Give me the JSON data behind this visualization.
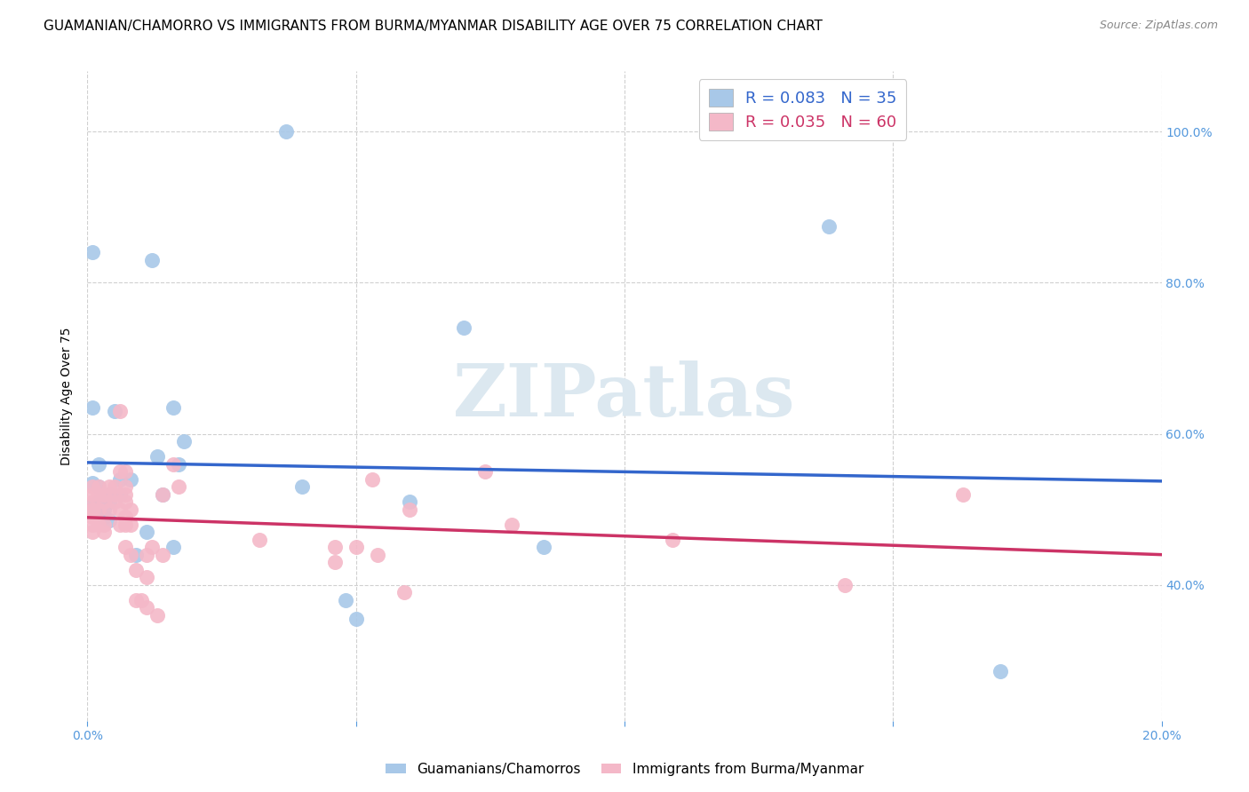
{
  "title": "GUAMANIAN/CHAMORRO VS IMMIGRANTS FROM BURMA/MYANMAR DISABILITY AGE OVER 75 CORRELATION CHART",
  "source": "Source: ZipAtlas.com",
  "ylabel": "Disability Age Over 75",
  "ytick_values": [
    0.4,
    0.6,
    0.8,
    1.0
  ],
  "xlim": [
    0.0,
    0.2
  ],
  "ylim": [
    0.22,
    1.08
  ],
  "legend_blue_R": "R = 0.083",
  "legend_blue_N": "N = 35",
  "legend_pink_R": "R = 0.035",
  "legend_pink_N": "N = 60",
  "label_blue": "Guamanians/Chamorros",
  "label_pink": "Immigrants from Burma/Myanmar",
  "blue_color": "#a8c8e8",
  "pink_color": "#f4b8c8",
  "trendline_blue_color": "#3366cc",
  "trendline_pink_color": "#cc3366",
  "blue_x": [
    0.037,
    0.001,
    0.001,
    0.002,
    0.002,
    0.002,
    0.003,
    0.003,
    0.003,
    0.004,
    0.004,
    0.005,
    0.006,
    0.006,
    0.008,
    0.009,
    0.011,
    0.012,
    0.013,
    0.014,
    0.016,
    0.016,
    0.017,
    0.018,
    0.04,
    0.048,
    0.05,
    0.06,
    0.07,
    0.085,
    0.138,
    0.17,
    0.001,
    0.004,
    0.001
  ],
  "blue_y": [
    1.0,
    0.635,
    0.535,
    0.51,
    0.53,
    0.56,
    0.49,
    0.5,
    0.52,
    0.51,
    0.52,
    0.63,
    0.52,
    0.54,
    0.54,
    0.44,
    0.47,
    0.83,
    0.57,
    0.52,
    0.45,
    0.635,
    0.56,
    0.59,
    0.53,
    0.38,
    0.355,
    0.51,
    0.74,
    0.45,
    0.875,
    0.285,
    0.505,
    0.485,
    0.84
  ],
  "pink_x": [
    0.001,
    0.001,
    0.001,
    0.001,
    0.001,
    0.001,
    0.001,
    0.001,
    0.002,
    0.002,
    0.002,
    0.002,
    0.003,
    0.003,
    0.003,
    0.003,
    0.004,
    0.004,
    0.005,
    0.005,
    0.005,
    0.006,
    0.006,
    0.006,
    0.006,
    0.007,
    0.007,
    0.007,
    0.007,
    0.007,
    0.007,
    0.007,
    0.008,
    0.008,
    0.008,
    0.009,
    0.009,
    0.01,
    0.011,
    0.011,
    0.011,
    0.012,
    0.013,
    0.014,
    0.014,
    0.016,
    0.017,
    0.032,
    0.046,
    0.046,
    0.05,
    0.053,
    0.054,
    0.059,
    0.06,
    0.074,
    0.079,
    0.109,
    0.141,
    0.163
  ],
  "pink_y": [
    0.5,
    0.51,
    0.52,
    0.48,
    0.47,
    0.53,
    0.49,
    0.5,
    0.48,
    0.5,
    0.52,
    0.53,
    0.51,
    0.52,
    0.48,
    0.47,
    0.5,
    0.53,
    0.51,
    0.52,
    0.53,
    0.63,
    0.55,
    0.5,
    0.48,
    0.49,
    0.51,
    0.52,
    0.53,
    0.55,
    0.48,
    0.45,
    0.5,
    0.48,
    0.44,
    0.42,
    0.38,
    0.38,
    0.37,
    0.41,
    0.44,
    0.45,
    0.36,
    0.52,
    0.44,
    0.56,
    0.53,
    0.46,
    0.43,
    0.45,
    0.45,
    0.54,
    0.44,
    0.39,
    0.5,
    0.55,
    0.48,
    0.46,
    0.4,
    0.52
  ],
  "grid_color": "#d0d0d0",
  "background_color": "#ffffff",
  "watermark": "ZIPatlas",
  "watermark_color": "#dce8f0",
  "title_fontsize": 11,
  "axis_label_fontsize": 10,
  "tick_fontsize": 10,
  "legend_fontsize": 13,
  "xtick_positions": [
    0.0,
    0.05,
    0.1,
    0.15,
    0.2
  ],
  "xtick_show_labels": [
    true,
    false,
    false,
    false,
    true
  ],
  "xtick_label_values": [
    "0.0%",
    "",
    "",
    "",
    "20.0%"
  ]
}
